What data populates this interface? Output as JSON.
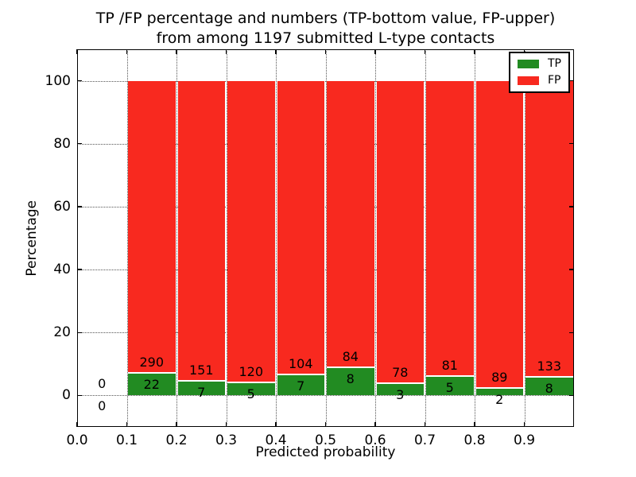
{
  "figure": {
    "title_line1": "TP /FP percentage and numbers (TP-bottom value, FP-upper)",
    "title_line2": "from among 1197 submitted L-type contacts"
  },
  "chart_data": {
    "type": "bar",
    "stacked": true,
    "normalized_to_100_percent": true,
    "title": "TP /FP percentage and numbers (TP-bottom value, FP-upper) from among 1197 submitted L-type contacts",
    "xlabel": "Predicted probability",
    "ylabel": "Percentage",
    "xlim": [
      0.0,
      1.0
    ],
    "ylim": [
      -10,
      110
    ],
    "xticks": [
      0.0,
      0.1,
      0.2,
      0.3,
      0.4,
      0.5,
      0.6,
      0.7,
      0.8,
      0.9
    ],
    "yticks": [
      0,
      20,
      40,
      60,
      80,
      100
    ],
    "grid": true,
    "legend": {
      "position": "upper right",
      "entries": [
        "TP",
        "FP"
      ]
    },
    "series": [
      {
        "name": "TP",
        "color": "#228b22",
        "position": "bottom"
      },
      {
        "name": "FP",
        "color": "#f8291f",
        "position": "top"
      }
    ],
    "bins": [
      {
        "range": [
          0.0,
          0.1
        ],
        "tp": 0,
        "fp": 0
      },
      {
        "range": [
          0.1,
          0.2
        ],
        "tp": 22,
        "fp": 290
      },
      {
        "range": [
          0.2,
          0.3
        ],
        "tp": 7,
        "fp": 151
      },
      {
        "range": [
          0.3,
          0.4
        ],
        "tp": 5,
        "fp": 120
      },
      {
        "range": [
          0.4,
          0.5
        ],
        "tp": 7,
        "fp": 104
      },
      {
        "range": [
          0.5,
          0.6
        ],
        "tp": 8,
        "fp": 84
      },
      {
        "range": [
          0.6,
          0.7
        ],
        "tp": 3,
        "fp": 78
      },
      {
        "range": [
          0.7,
          0.8
        ],
        "tp": 5,
        "fp": 81
      },
      {
        "range": [
          0.8,
          0.9
        ],
        "tp": 2,
        "fp": 89
      },
      {
        "range": [
          0.9,
          1.0
        ],
        "tp": 8,
        "fp": 133
      }
    ]
  }
}
